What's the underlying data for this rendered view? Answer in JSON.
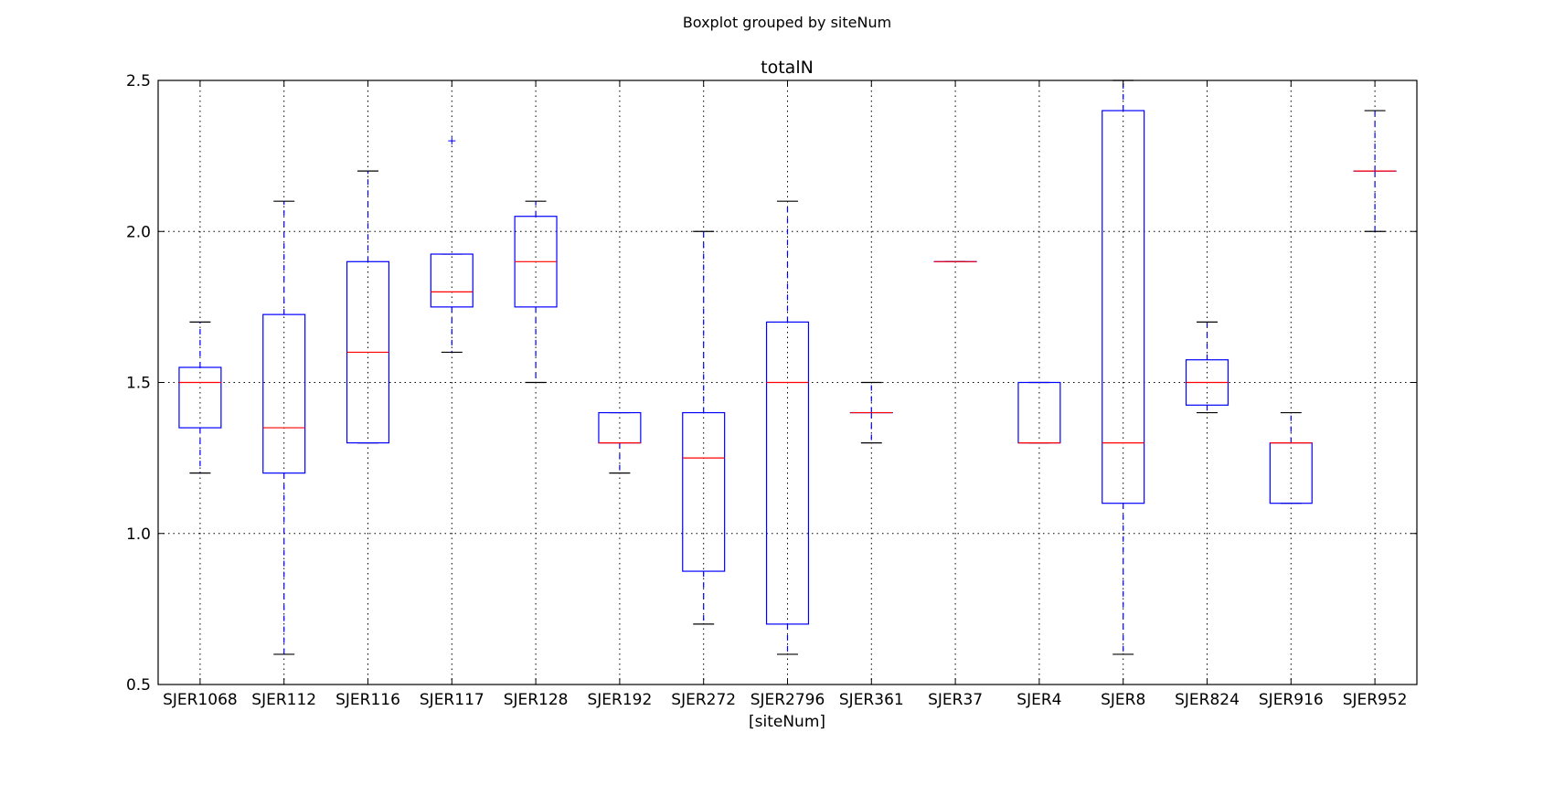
{
  "chart_data": {
    "type": "boxplot",
    "suptitle": "Boxplot grouped by siteNum",
    "title": "totalN",
    "xlabel": "[siteNum]",
    "ylabel": "",
    "ylim": [
      0.5,
      2.5
    ],
    "yticks": [
      "0.5",
      "1.0",
      "1.5",
      "2.0",
      "2.5"
    ],
    "grid": true,
    "categories": [
      "SJER1068",
      "SJER112",
      "SJER116",
      "SJER117",
      "SJER128",
      "SJER192",
      "SJER272",
      "SJER2796",
      "SJER361",
      "SJER37",
      "SJER4",
      "SJER8",
      "SJER824",
      "SJER916",
      "SJER952"
    ],
    "boxes": [
      {
        "site": "SJER1068",
        "whisker_low": 1.2,
        "q1": 1.35,
        "median": 1.5,
        "q3": 1.55,
        "whisker_high": 1.7,
        "outliers": []
      },
      {
        "site": "SJER112",
        "whisker_low": 0.6,
        "q1": 1.2,
        "median": 1.35,
        "q3": 1.725,
        "whisker_high": 2.1,
        "outliers": []
      },
      {
        "site": "SJER116",
        "whisker_low": 1.3,
        "q1": 1.3,
        "median": 1.6,
        "q3": 1.9,
        "whisker_high": 2.2,
        "outliers": []
      },
      {
        "site": "SJER117",
        "whisker_low": 1.6,
        "q1": 1.75,
        "median": 1.8,
        "q3": 1.925,
        "whisker_high": 1.925,
        "outliers": [
          2.3
        ]
      },
      {
        "site": "SJER128",
        "whisker_low": 1.5,
        "q1": 1.75,
        "median": 1.9,
        "q3": 2.05,
        "whisker_high": 2.1,
        "outliers": []
      },
      {
        "site": "SJER192",
        "whisker_low": 1.2,
        "q1": 1.3,
        "median": 1.3,
        "q3": 1.4,
        "whisker_high": 1.4,
        "outliers": []
      },
      {
        "site": "SJER272",
        "whisker_low": 0.7,
        "q1": 0.875,
        "median": 1.25,
        "q3": 1.4,
        "whisker_high": 2.0,
        "outliers": []
      },
      {
        "site": "SJER2796",
        "whisker_low": 0.6,
        "q1": 0.7,
        "median": 1.5,
        "q3": 1.7,
        "whisker_high": 2.1,
        "outliers": []
      },
      {
        "site": "SJER361",
        "whisker_low": 1.3,
        "q1": 1.4,
        "median": 1.4,
        "q3": 1.4,
        "whisker_high": 1.5,
        "outliers": []
      },
      {
        "site": "SJER37",
        "whisker_low": 1.9,
        "q1": 1.9,
        "median": 1.9,
        "q3": 1.9,
        "whisker_high": 1.9,
        "outliers": []
      },
      {
        "site": "SJER4",
        "whisker_low": 1.3,
        "q1": 1.3,
        "median": 1.3,
        "q3": 1.5,
        "whisker_high": 1.5,
        "outliers": []
      },
      {
        "site": "SJER8",
        "whisker_low": 0.6,
        "q1": 1.1,
        "median": 1.3,
        "q3": 2.4,
        "whisker_high": 2.5,
        "outliers": []
      },
      {
        "site": "SJER824",
        "whisker_low": 1.4,
        "q1": 1.425,
        "median": 1.5,
        "q3": 1.575,
        "whisker_high": 1.7,
        "outliers": []
      },
      {
        "site": "SJER916",
        "whisker_low": 1.1,
        "q1": 1.1,
        "median": 1.3,
        "q3": 1.3,
        "whisker_high": 1.4,
        "outliers": []
      },
      {
        "site": "SJER952",
        "whisker_low": 2.0,
        "q1": 2.2,
        "median": 2.2,
        "q3": 2.2,
        "whisker_high": 2.4,
        "outliers": []
      }
    ],
    "colors": {
      "box": "#0000ff",
      "median": "#ff0000",
      "cap": "#000000",
      "grid": "#000000"
    }
  }
}
